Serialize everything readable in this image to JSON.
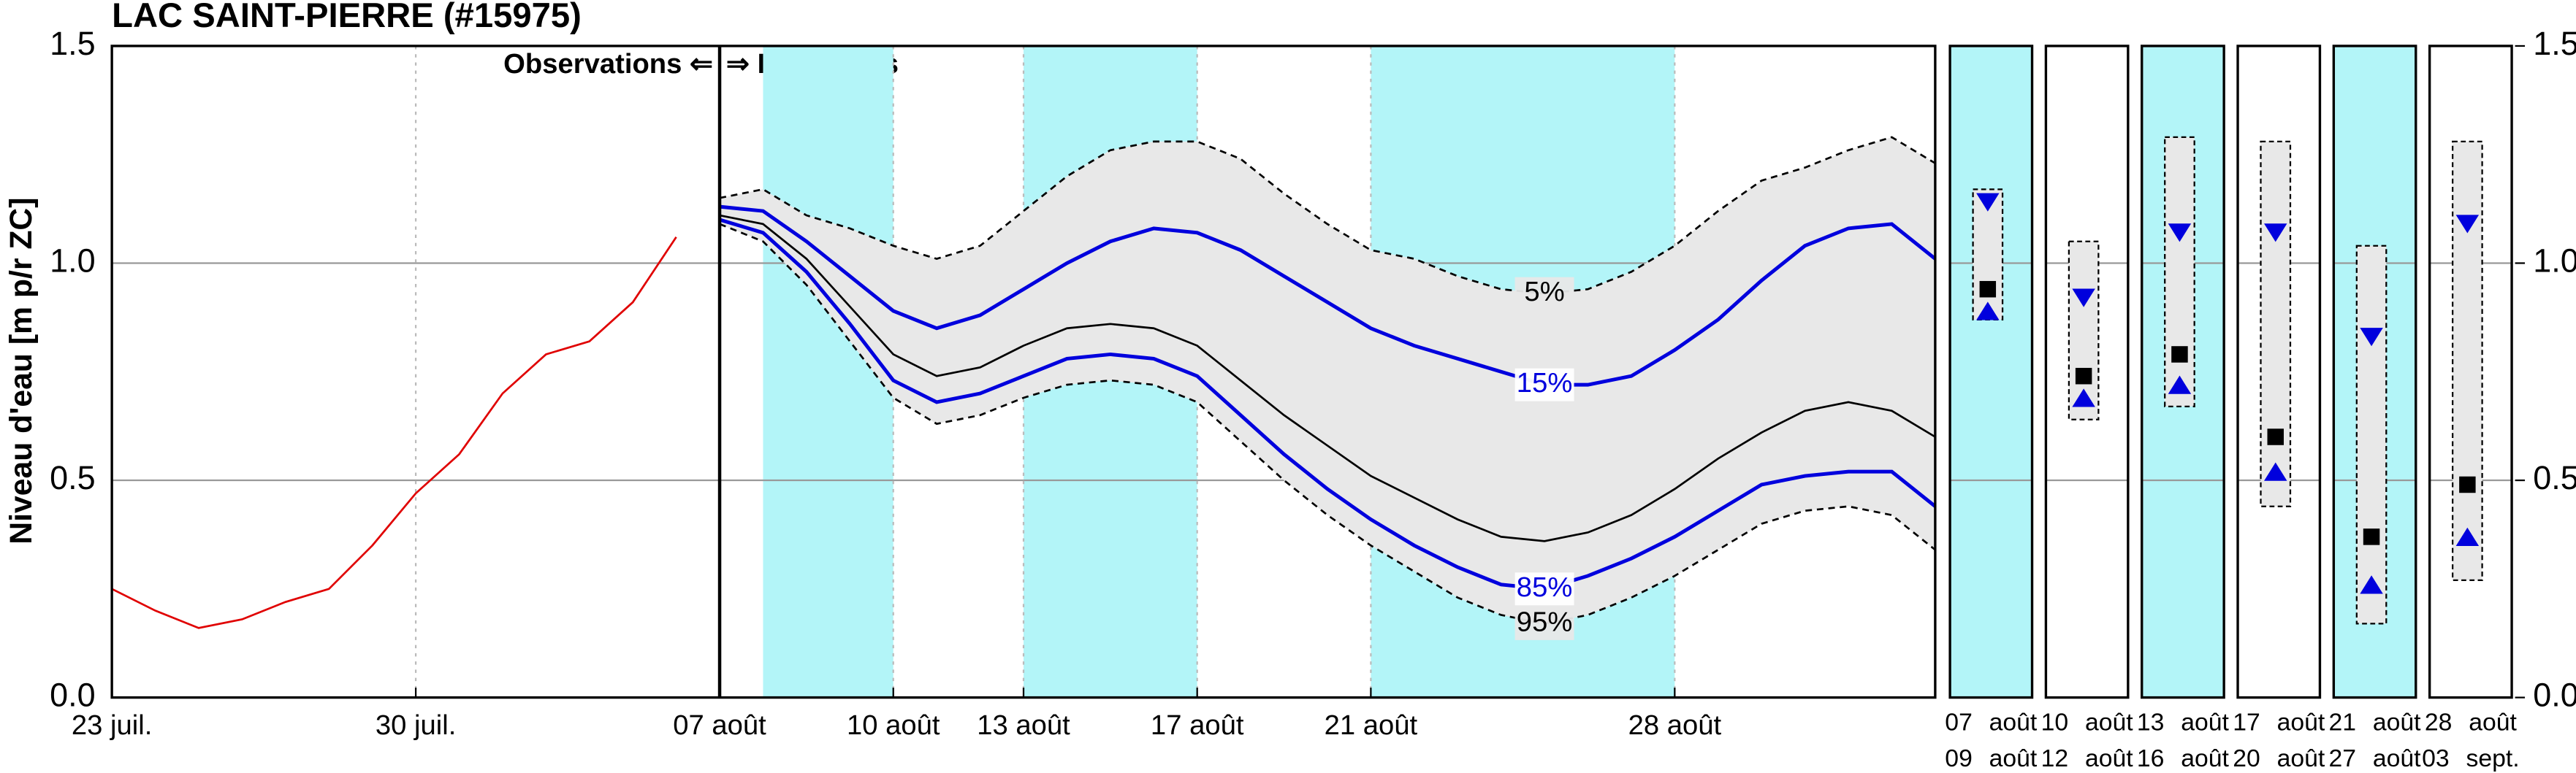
{
  "chart_data": {
    "type": "forecast",
    "title": "LAC SAINT-PIERRE (#15975)",
    "ylabel": "Niveau d'eau [m p/r ZC]",
    "annotations": [
      "Observations ⇐",
      "⇒ Prévisions"
    ],
    "xlim": [
      0,
      42
    ],
    "xticks": [
      {
        "value": 0,
        "label": "23 juil."
      },
      {
        "value": 7,
        "label": "30 juil."
      },
      {
        "value": 14,
        "label": "07 août"
      },
      {
        "value": 18,
        "label": "10 août"
      },
      {
        "value": 21,
        "label": "13 août"
      },
      {
        "value": 25,
        "label": "17 août"
      },
      {
        "value": 29,
        "label": "21 août"
      },
      {
        "value": 36,
        "label": "28 août"
      }
    ],
    "ylim": [
      0,
      1.5
    ],
    "yticks": [
      {
        "value": 0,
        "label": "0.0"
      },
      {
        "value": 0.5,
        "label": "0.5"
      },
      {
        "value": 1,
        "label": "1.0"
      },
      {
        "value": 1.5,
        "label": "1.5"
      }
    ],
    "grid": true,
    "split_x": 14,
    "highlight_ranges": [
      [
        15,
        18
      ],
      [
        21,
        25
      ],
      [
        29,
        36
      ]
    ],
    "highlight_color": "#b3f5f8",
    "envelope_color": "#e8e8e8",
    "series": [
      {
        "color": "#e00000",
        "x": [
          0,
          1,
          2,
          3,
          4,
          5,
          6,
          7,
          8,
          9,
          10,
          11,
          12,
          13
        ],
        "values": [
          0.25,
          0.2,
          0.16,
          0.18,
          0.22,
          0.25,
          0.35,
          0.47,
          0.56,
          0.7,
          0.79,
          0.82,
          0.91,
          1.06
        ]
      },
      {
        "name": "5%",
        "color": "#000000",
        "dash": true,
        "x": [
          14,
          15,
          16,
          17,
          18,
          19,
          20,
          21,
          22,
          23,
          24,
          25,
          26,
          27,
          28,
          29,
          30,
          31,
          32,
          33,
          34,
          35,
          36,
          37,
          38,
          39,
          40,
          41,
          42
        ],
        "values": [
          1.15,
          1.17,
          1.11,
          1.08,
          1.04,
          1.01,
          1.04,
          1.12,
          1.2,
          1.26,
          1.28,
          1.28,
          1.24,
          1.16,
          1.09,
          1.03,
          1.01,
          0.97,
          0.94,
          0.93,
          0.94,
          0.98,
          1.04,
          1.12,
          1.19,
          1.22,
          1.26,
          1.29,
          1.23
        ]
      },
      {
        "name": "15%",
        "color": "#0000dd",
        "x": [
          14,
          15,
          16,
          17,
          18,
          19,
          20,
          21,
          22,
          23,
          24,
          25,
          26,
          27,
          28,
          29,
          30,
          31,
          32,
          33,
          34,
          35,
          36,
          37,
          38,
          39,
          40,
          41,
          42
        ],
        "values": [
          1.13,
          1.12,
          1.05,
          0.97,
          0.89,
          0.85,
          0.88,
          0.94,
          1.0,
          1.05,
          1.08,
          1.07,
          1.03,
          0.97,
          0.91,
          0.85,
          0.81,
          0.78,
          0.75,
          0.72,
          0.72,
          0.74,
          0.8,
          0.87,
          0.96,
          1.04,
          1.08,
          1.09,
          1.01
        ]
      },
      {
        "color": "#000000",
        "x": [
          14,
          15,
          16,
          17,
          18,
          19,
          20,
          21,
          22,
          23,
          24,
          25,
          26,
          27,
          28,
          29,
          30,
          31,
          32,
          33,
          34,
          35,
          36,
          37,
          38,
          39,
          40,
          41,
          42
        ],
        "values": [
          1.11,
          1.09,
          1.01,
          0.9,
          0.79,
          0.74,
          0.76,
          0.81,
          0.85,
          0.86,
          0.85,
          0.81,
          0.73,
          0.65,
          0.58,
          0.51,
          0.46,
          0.41,
          0.37,
          0.36,
          0.38,
          0.42,
          0.48,
          0.55,
          0.61,
          0.66,
          0.68,
          0.66,
          0.6
        ]
      },
      {
        "name": "85%",
        "color": "#0000dd",
        "x": [
          14,
          15,
          16,
          17,
          18,
          19,
          20,
          21,
          22,
          23,
          24,
          25,
          26,
          27,
          28,
          29,
          30,
          31,
          32,
          33,
          34,
          35,
          36,
          37,
          38,
          39,
          40,
          41,
          42
        ],
        "values": [
          1.1,
          1.07,
          0.98,
          0.86,
          0.73,
          0.68,
          0.7,
          0.74,
          0.78,
          0.79,
          0.78,
          0.74,
          0.65,
          0.56,
          0.48,
          0.41,
          0.35,
          0.3,
          0.26,
          0.25,
          0.28,
          0.32,
          0.37,
          0.43,
          0.49,
          0.51,
          0.52,
          0.52,
          0.44
        ]
      },
      {
        "name": "95%",
        "color": "#000000",
        "dash": true,
        "x": [
          14,
          15,
          16,
          17,
          18,
          19,
          20,
          21,
          22,
          23,
          24,
          25,
          26,
          27,
          28,
          29,
          30,
          31,
          32,
          33,
          34,
          35,
          36,
          37,
          38,
          39,
          40,
          41,
          42
        ],
        "values": [
          1.09,
          1.05,
          0.95,
          0.82,
          0.69,
          0.63,
          0.65,
          0.69,
          0.72,
          0.73,
          0.72,
          0.68,
          0.59,
          0.5,
          0.42,
          0.35,
          0.29,
          0.23,
          0.19,
          0.17,
          0.19,
          0.23,
          0.28,
          0.34,
          0.4,
          0.43,
          0.44,
          0.42,
          0.34
        ]
      }
    ],
    "panels": [
      {
        "from": "07 août",
        "to": "09 août",
        "highlight": true,
        "low": 0.87,
        "high": 1.17,
        "q15": 1.14,
        "median": 0.94,
        "q85": 0.89
      },
      {
        "from": "10 août",
        "to": "12 août",
        "highlight": false,
        "low": 0.64,
        "high": 1.05,
        "q15": 0.92,
        "median": 0.74,
        "q85": 0.69
      },
      {
        "from": "13 août",
        "to": "16 août",
        "highlight": true,
        "low": 0.67,
        "high": 1.29,
        "q15": 1.07,
        "median": 0.79,
        "q85": 0.72
      },
      {
        "from": "17 août",
        "to": "20 août",
        "highlight": false,
        "low": 0.44,
        "high": 1.28,
        "q15": 1.07,
        "median": 0.6,
        "q85": 0.52
      },
      {
        "from": "21 août",
        "to": "27 août",
        "highlight": true,
        "low": 0.17,
        "high": 1.04,
        "q15": 0.83,
        "median": 0.37,
        "q85": 0.26
      },
      {
        "from": "28 août",
        "to": "03 sept.",
        "highlight": false,
        "low": 0.27,
        "high": 1.28,
        "q15": 1.09,
        "median": 0.49,
        "q85": 0.37
      }
    ]
  }
}
